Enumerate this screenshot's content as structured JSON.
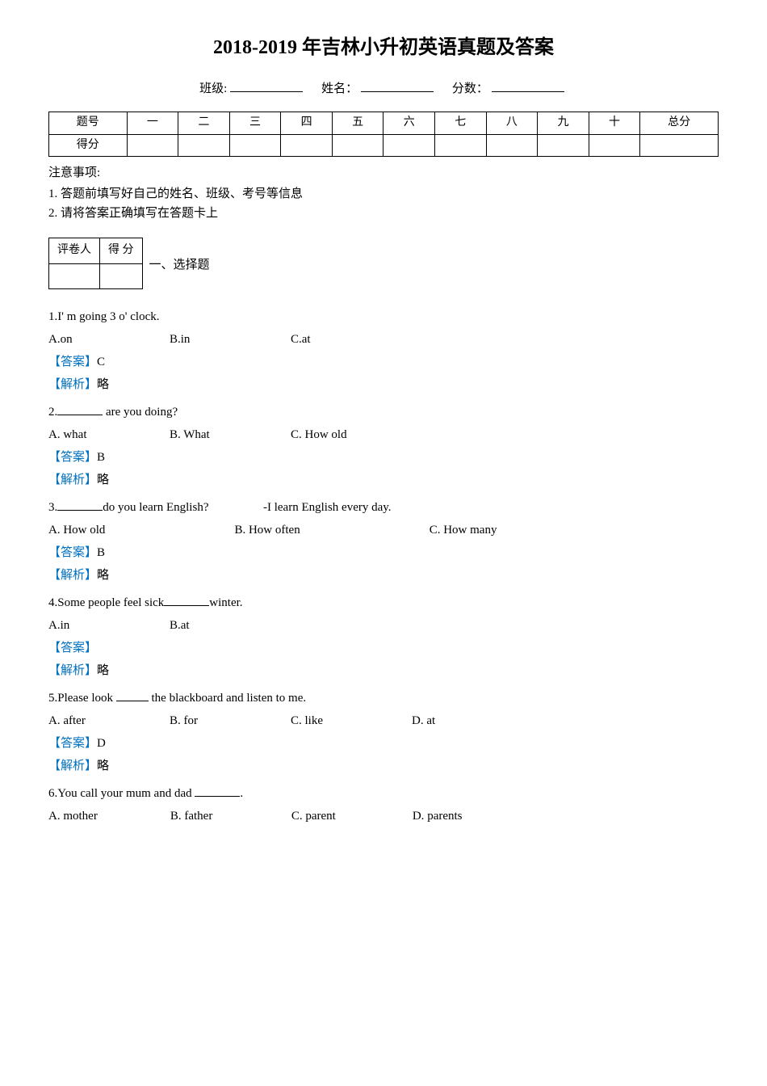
{
  "title": "2018-2019 年吉林小升初英语真题及答案",
  "header": {
    "class_label": "班级:",
    "name_label": "姓名：",
    "score_label": "分数："
  },
  "score_table": {
    "row_headers": [
      "题号",
      "得分"
    ],
    "cols": [
      "一",
      "二",
      "三",
      "四",
      "五",
      "六",
      "七",
      "八",
      "九",
      "十",
      "总分"
    ]
  },
  "notes": {
    "title": "注意事项:",
    "items": [
      "1. 答题前填写好自己的姓名、班级、考号等信息",
      "2. 请将答案正确填写在答题卡上"
    ]
  },
  "evalbox": {
    "left": "评卷人",
    "right": "得    分"
  },
  "section1_label": "一、选择题",
  "answer_label": "【答案】",
  "explain_label": "【解析】",
  "explain_text": "略",
  "colors": {
    "text": "#000000",
    "accent": "#0070c0",
    "background": "#ffffff"
  },
  "questions": [
    {
      "num": "1.",
      "stem_before": "I' m going",
      "stem_after": "3 o' clock.",
      "opts": [
        {
          "k": "A.",
          "v": "on"
        },
        {
          "k": "B.",
          "v": "in"
        },
        {
          "k": "C.",
          "v": "at"
        }
      ],
      "answer": "C"
    },
    {
      "num": "2.",
      "stem_after": " are you doing?",
      "blank": true,
      "opts": [
        {
          "k": "A.",
          "v": " what"
        },
        {
          "k": "B.",
          "v": " What"
        },
        {
          "k": "C.",
          "v": " How old"
        }
      ],
      "answer": "B"
    },
    {
      "num": "3.",
      "stem_after": "do you learn English?",
      "stem_right": "-I learn English every day.",
      "blank": true,
      "opts": [
        {
          "k": "A.",
          "v": " How old"
        },
        {
          "k": "B.",
          "v": " How often"
        },
        {
          "k": "C.",
          "v": " How many"
        }
      ],
      "answer": "B",
      "wide": true
    },
    {
      "num": "4.",
      "stem_before": "Some people feel sick",
      "stem_after": "winter.",
      "blank": true,
      "opts": [
        {
          "k": "A.",
          "v": "in"
        },
        {
          "k": "B.",
          "v": "at"
        }
      ],
      "answer": ""
    },
    {
      "num": "5.",
      "stem_before": "Please look ",
      "stem_after": " the blackboard and listen to me.",
      "blank_short": true,
      "opts": [
        {
          "k": "A.",
          "v": " after"
        },
        {
          "k": "B.",
          "v": " for"
        },
        {
          "k": "C.",
          "v": " like"
        },
        {
          "k": "D.",
          "v": " at"
        }
      ],
      "answer": "D"
    },
    {
      "num": "6.",
      "stem_before": "You call your mum and dad ",
      "stem_after": ".",
      "blank": true,
      "opts": [
        {
          "k": "A.",
          "v": " mother"
        },
        {
          "k": "B.",
          "v": " father"
        },
        {
          "k": "C.",
          "v": " parent"
        },
        {
          "k": "D.",
          "v": " parents"
        }
      ],
      "answer": null
    }
  ]
}
